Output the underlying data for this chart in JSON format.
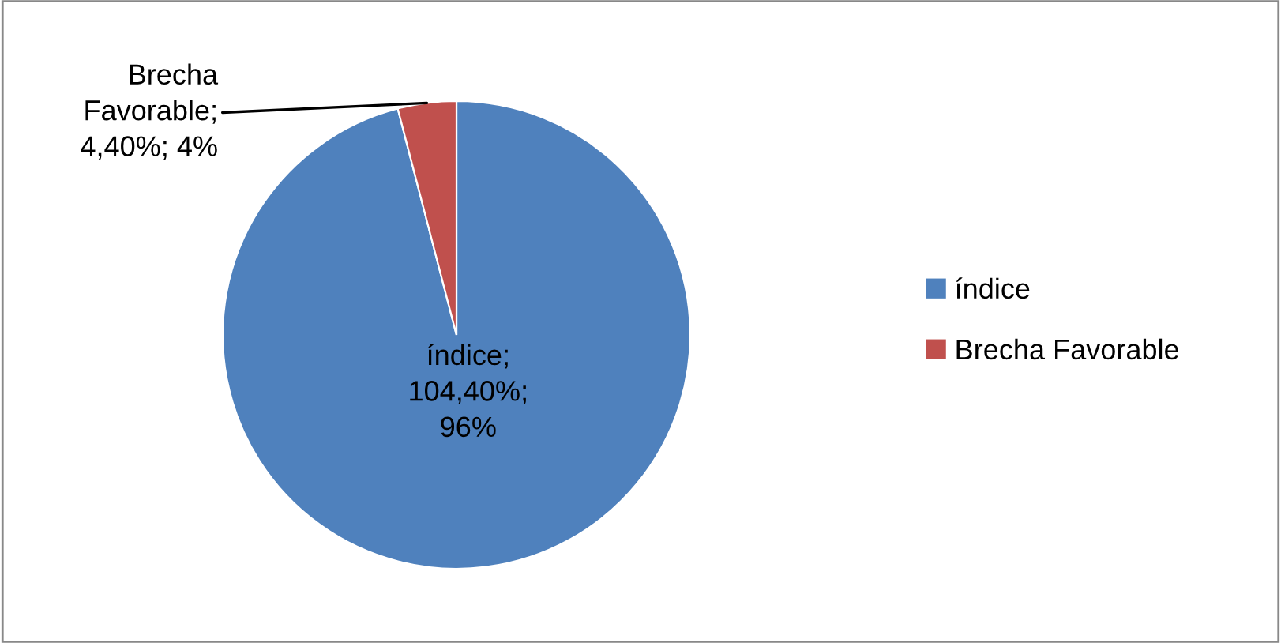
{
  "chart_data": {
    "type": "pie",
    "categories": [
      "índice",
      "Brecha Favorable"
    ],
    "values": [
      104.4,
      4.4
    ],
    "colors": [
      "#4f81bd",
      "#c0504d"
    ],
    "value_labels": [
      "índice;\n104,40%;\n96%",
      "Brecha\nFavorable;\n4,40%; 4%"
    ],
    "legend": "right"
  }
}
